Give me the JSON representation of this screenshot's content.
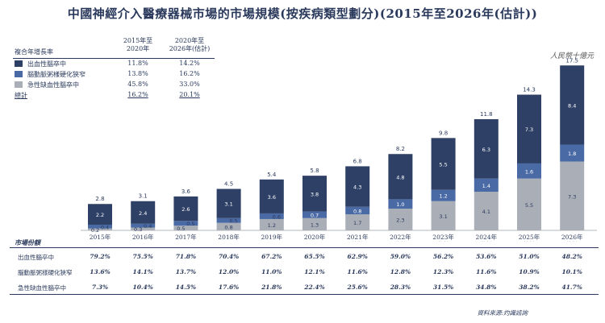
{
  "title": "中國神經介入醫療器械市場的市場規模(按疾病類型劃分)(2015年至2026年(估計))",
  "unit": "人民幣十億元",
  "cagr_table": {
    "header_label": "複合年增長率",
    "col1": [
      "2015年至",
      "2020年"
    ],
    "col2": [
      "2020年至",
      "2026年(估計)"
    ],
    "rows": [
      {
        "name": "出血性腦卒中",
        "v1": "11.8%",
        "v2": "14.2%",
        "color": "#2e4066"
      },
      {
        "name": "腦動脈粥樣硬化狹窄",
        "v1": "13.8%",
        "v2": "16.2%",
        "color": "#4a6aa5"
      },
      {
        "name": "急性缺血性腦卒中",
        "v1": "45.8%",
        "v2": "33.0%",
        "color": "#a9aeb7"
      }
    ],
    "total": {
      "name": "總計",
      "v1": "16.2%",
      "v2": "20.1%"
    }
  },
  "chart_data": {
    "type": "bar",
    "stacked": true,
    "categories": [
      "2015年",
      "2016年",
      "2017年",
      "2018年",
      "2019年",
      "2020年",
      "2021年(估計)",
      "2022年(估計)",
      "2023年(估計)",
      "2024年(估計)",
      "2025年(估計)",
      "2026年(估計)"
    ],
    "series": [
      {
        "name": "急性缺血性腦卒中",
        "color": "#a9aeb7",
        "values": [
          0.2,
          0.3,
          0.5,
          0.8,
          1.2,
          1.3,
          1.7,
          2.3,
          3.1,
          4.1,
          5.5,
          7.3
        ],
        "labels": [
          "0.2",
          "0.3",
          "0.5",
          "0.8",
          "1.2",
          "1.3",
          "1.7",
          "2.3",
          "3.1",
          "4.1",
          "5.5",
          "7.3"
        ]
      },
      {
        "name": "腦動脈粥樣硬化狹窄",
        "color": "#4a6aa5",
        "values": [
          0.4,
          0.4,
          0.5,
          0.5,
          0.6,
          0.7,
          0.8,
          1.0,
          1.2,
          1.4,
          1.6,
          1.8
        ],
        "labels": [
          "0.4",
          "0.4",
          "0.5",
          "0.5",
          "0.6",
          "0.7",
          "0.8",
          "1.0",
          "1.2",
          "1.4",
          "1.6",
          "1.8"
        ]
      },
      {
        "name": "出血性腦卒中",
        "color": "#2e4066",
        "values": [
          2.2,
          2.4,
          2.6,
          3.1,
          3.6,
          3.8,
          4.3,
          4.8,
          5.5,
          6.3,
          7.3,
          8.4
        ],
        "labels": [
          "2.2",
          "2.4",
          "2.6",
          "3.1",
          "3.6",
          "3.8",
          "4.3",
          "4.8",
          "5.5",
          "6.3",
          "7.3",
          "8.4"
        ]
      }
    ],
    "totals": [
      "2.8",
      "3.1",
      "3.6",
      "4.5",
      "5.4",
      "5.8",
      "6.8",
      "8.2",
      "9.8",
      "11.8",
      "14.3",
      "17.5"
    ],
    "ylim": [
      0,
      18
    ]
  },
  "market_share": {
    "title": "市場份額",
    "rows": [
      {
        "name": "出血性腦卒中",
        "values": [
          "79.2%",
          "75.5%",
          "71.8%",
          "70.4%",
          "67.2%",
          "65.5%",
          "62.9%",
          "59.0%",
          "56.2%",
          "53.6%",
          "51.0%",
          "48.2%"
        ]
      },
      {
        "name": "腦動脈粥樣硬化狹窄",
        "values": [
          "13.6%",
          "14.1%",
          "13.7%",
          "12.0%",
          "11.0%",
          "12.1%",
          "11.6%",
          "12.8%",
          "12.3%",
          "11.6%",
          "10.9%",
          "10.1%"
        ]
      },
      {
        "name": "急性缺血性腦卒中",
        "values": [
          "7.3%",
          "10.4%",
          "14.5%",
          "17.6%",
          "21.8%",
          "22.4%",
          "25.6%",
          "28.3%",
          "31.5%",
          "34.8%",
          "38.2%",
          "41.7%"
        ]
      }
    ]
  },
  "source": "資料來源:灼識諮詢"
}
